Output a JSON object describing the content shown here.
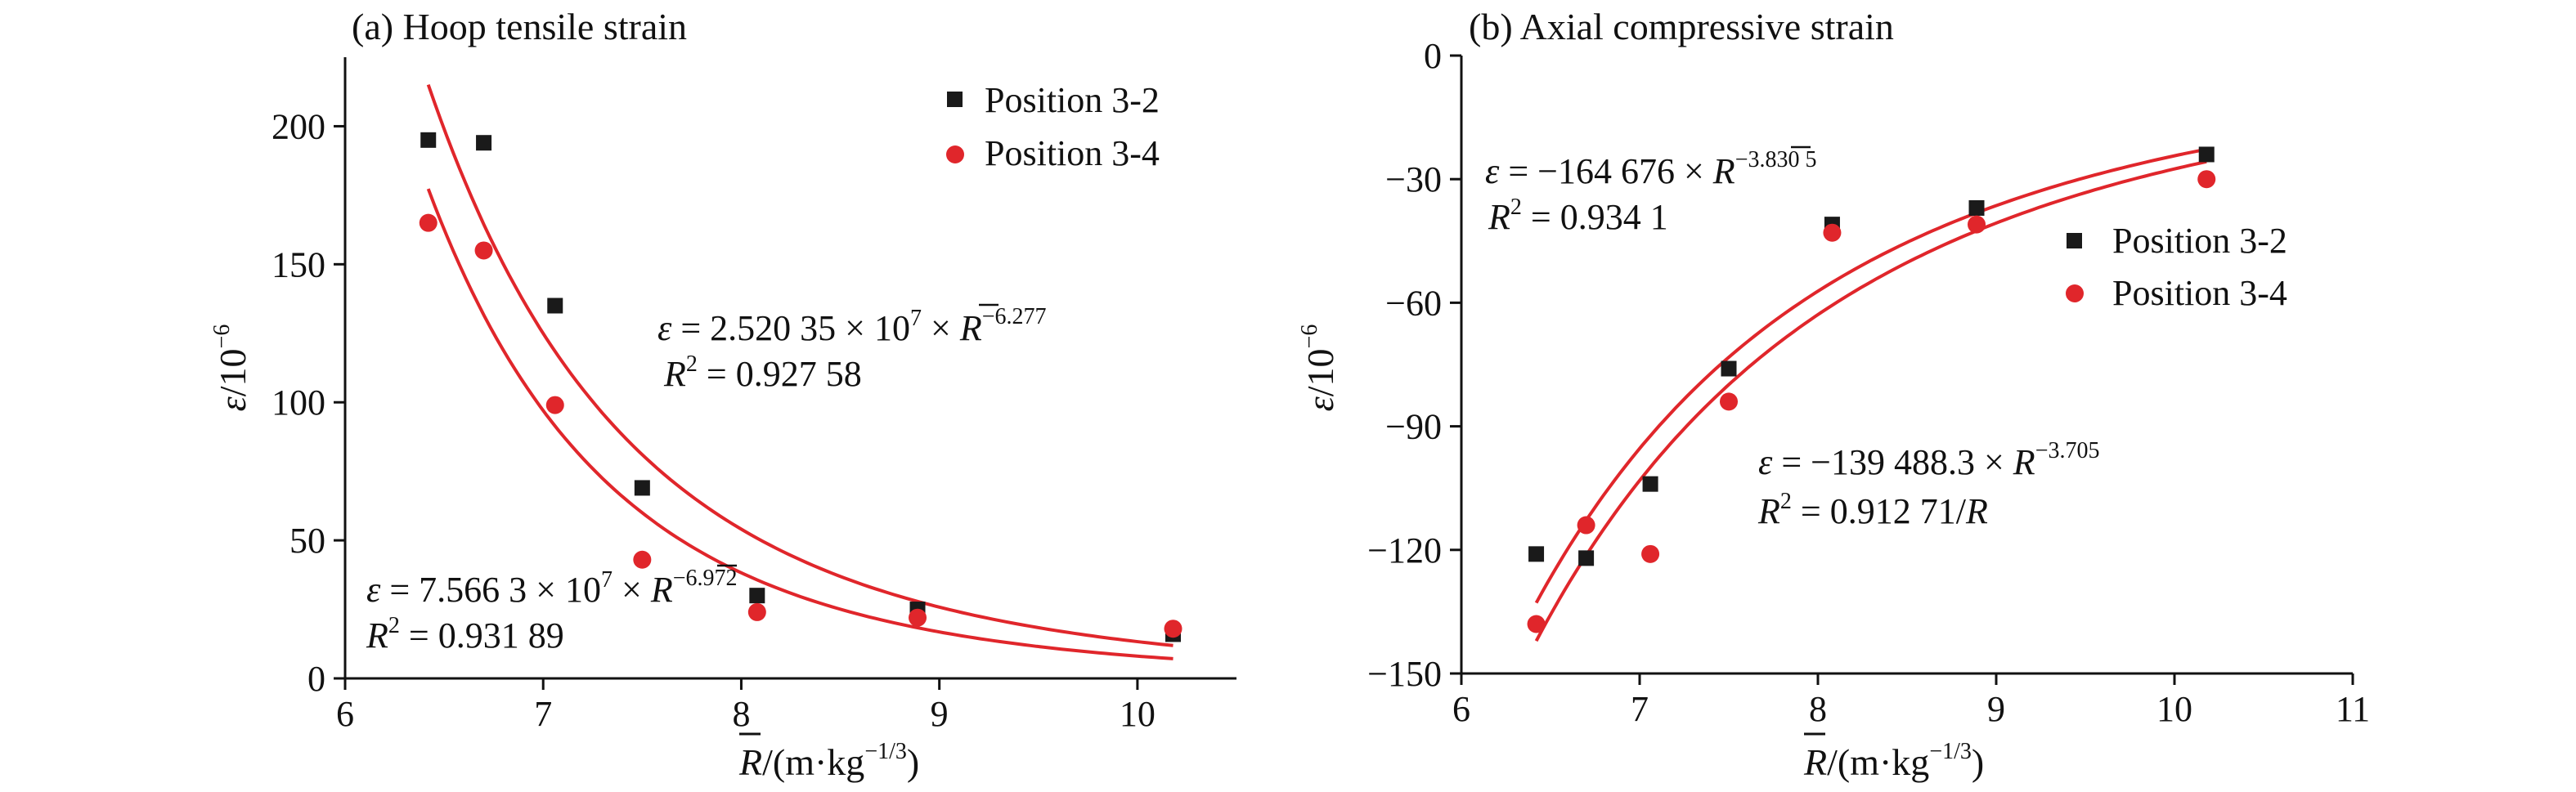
{
  "colors": {
    "series_a": "#1a1a1a",
    "series_b": "#e0262b",
    "fit": "#e0262b",
    "axis": "#111111"
  },
  "chart_data": [
    {
      "type": "scatter",
      "title": "(a) Hoop tensile strain",
      "ylabel_main": "ε",
      "ylabel_unit": "/10",
      "ylabel_sup": "−6",
      "xlabel_main": "/(m·kg",
      "xlabel_sup": "−1/3",
      "xlabel_end": ")",
      "xlim": [
        6,
        10.5
      ],
      "ylim": [
        0,
        225
      ],
      "xticks": [
        6,
        7,
        8,
        9,
        10
      ],
      "yticks": [
        0,
        50,
        100,
        150,
        200
      ],
      "legend_position": "top-right",
      "series": [
        {
          "name": "Position 3-2",
          "marker": "square",
          "color": "#1a1a1a",
          "x": [
            6.42,
            6.7,
            7.06,
            7.5,
            8.08,
            8.89,
            10.18
          ],
          "y": [
            195,
            194,
            135,
            69,
            30,
            25,
            16
          ]
        },
        {
          "name": "Position 3-4",
          "marker": "circle",
          "color": "#e0262b",
          "x": [
            6.42,
            6.7,
            7.06,
            7.5,
            8.08,
            8.89,
            10.18
          ],
          "y": [
            165,
            155,
            99,
            43,
            24,
            22,
            18
          ]
        }
      ],
      "fits": [
        {
          "for": "Position 3-2",
          "coef": 25203500.0,
          "exp": -6.277,
          "x_range": [
            6.42,
            10.18
          ]
        },
        {
          "for": "Position 3-4",
          "coef": 75663000.0,
          "exp": -6.972,
          "x_range": [
            6.42,
            10.18
          ]
        }
      ],
      "annotations": [
        {
          "eq_pre": "ε = 2.520 35 × 10",
          "eq_pow": "7",
          "eq_mid": " × ",
          "eq_sup": "−6.277",
          "r2_label": "R",
          "r2_sup": "2",
          "r2_val": " = 0.927 58"
        },
        {
          "eq_pre": "ε = 7.566 3 × 10",
          "eq_pow": "7",
          "eq_mid": " × ",
          "eq_sup": "−6.972",
          "r2_label": "R",
          "r2_sup": "2",
          "r2_val": " = 0.931 89"
        }
      ]
    },
    {
      "type": "scatter",
      "title": "(b) Axial compressive strain",
      "ylabel_main": "ε",
      "ylabel_unit": "/10",
      "ylabel_sup": "−6",
      "xlabel_main": "/(m·kg",
      "xlabel_sup": "−1/3",
      "xlabel_end": ")",
      "xlim": [
        6,
        11
      ],
      "ylim": [
        -150,
        0
      ],
      "xticks": [
        6,
        7,
        8,
        9,
        10,
        11
      ],
      "yticks": [
        -150,
        -120,
        -90,
        -60,
        -30,
        0
      ],
      "legend_position": "center-right",
      "series": [
        {
          "name": "Position 3-2",
          "marker": "square",
          "color": "#1a1a1a",
          "x": [
            6.42,
            6.7,
            7.06,
            7.5,
            8.08,
            8.89,
            10.18
          ],
          "y": [
            -121,
            -122,
            -104,
            -76,
            -41,
            -37,
            -24
          ]
        },
        {
          "name": "Position 3-4",
          "marker": "circle",
          "color": "#e0262b",
          "x": [
            6.42,
            6.7,
            7.06,
            7.5,
            8.08,
            8.89,
            10.18
          ],
          "y": [
            -138,
            -114,
            -121,
            -84,
            -43,
            -41,
            -30
          ]
        }
      ],
      "fits": [
        {
          "for": "Position 3-2",
          "coef": -164676,
          "exp": -3.8305,
          "x_range": [
            6.42,
            10.18
          ]
        },
        {
          "for": "Position 3-4",
          "coef": -139488.3,
          "exp": -3.705,
          "x_range": [
            6.42,
            10.18
          ]
        }
      ],
      "annotations": [
        {
          "eq_pre": "ε = −164 676 × ",
          "eq_sup": "−3.830 5",
          "r2_label": "R",
          "r2_sup": "2",
          "r2_val": " = 0.934 1"
        },
        {
          "eq_pre": "ε = −139 488.3 × ",
          "eq_sup": "−3.705",
          "r2_label": "R",
          "r2_sup": "2",
          "r2_val": " = 0.912 71/",
          "r2_tail": "R"
        }
      ]
    }
  ]
}
